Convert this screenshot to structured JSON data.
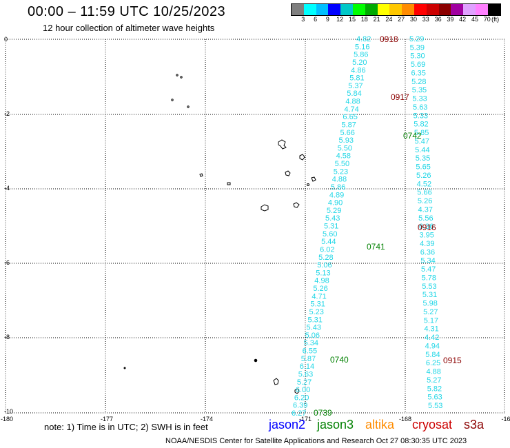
{
  "header": {
    "title": "00:00 – 11:59 UTC 10/25/2023",
    "subtitle": "12 hour collection of altimeter wave heights"
  },
  "color_scale": {
    "colors": [
      "#7f7f7f",
      "#00ffff",
      "#00bfff",
      "#0000ff",
      "#00c8c8",
      "#00ff00",
      "#00aa00",
      "#ffff00",
      "#ffc800",
      "#ff8c00",
      "#ff0000",
      "#cc0000",
      "#8b0000",
      "#a000a0",
      "#e0a0ff",
      "#ff80ff",
      "#000000"
    ],
    "labels": [
      "3",
      "6",
      "9",
      "12",
      "15",
      "18",
      "21",
      "24",
      "27",
      "30",
      "33",
      "36",
      "39",
      "42",
      "45",
      "70",
      "(ft)"
    ]
  },
  "axes": {
    "x_ticks": [
      "-180",
      "-177",
      "-174",
      "-171",
      "-168",
      "-16"
    ],
    "y_ticks": [
      "0",
      "-2",
      "-4",
      "-6",
      "-8",
      "-10"
    ]
  },
  "track_color": "#1fd6e6",
  "time_color_green": "#008000",
  "time_color_red": "#8b0000",
  "tracks": {
    "left_values": [
      "4.82",
      "5.16",
      "5.86",
      "5.20",
      "4.86",
      "5.81",
      "5.37",
      "5.84",
      "4.88",
      "4.74",
      "6.65",
      "5.87",
      "5.66",
      "5.93",
      "5.50",
      "4.58",
      "5.50",
      "5.23",
      "4.88",
      "5.86",
      "4.89",
      "4.90",
      "5.29",
      "5.43",
      "5.31",
      "5.60",
      "5.44",
      "6.02",
      "5.28",
      "5.06",
      "5.13",
      "4.98",
      "5.26",
      "4.71",
      "5.31",
      "5.23",
      "5.31",
      "5.43",
      "5.06",
      "5.34",
      "6.55",
      "5.87",
      "6.14",
      "5.63",
      "5.27",
      "6.00",
      "6.20",
      "6.39",
      "6.27"
    ],
    "right_values": [
      "5.29",
      "5.39",
      "5.30",
      "5.69",
      "6.35",
      "5.28",
      "5.35",
      "5.33",
      "5.63",
      "5.33",
      "5.82",
      "5.85",
      "5.47",
      "5.44",
      "5.35",
      "5.65",
      "5.26",
      "4.52",
      "5.66",
      "5.26",
      "4.37",
      "5.56",
      "6.36",
      "3.95",
      "4.39",
      "6.36",
      "5.34",
      "5.47",
      "5.78",
      "5.53",
      "5.31",
      "5.98",
      "5.27",
      "5.17",
      "4.31",
      "4.42",
      "4.94",
      "5.84",
      "6.25",
      "4.88",
      "5.27",
      "5.82",
      "5.63",
      "5.53"
    ]
  },
  "time_labels": [
    {
      "text": "0918",
      "color": "red"
    },
    {
      "text": "0917",
      "color": "red"
    },
    {
      "text": "0742",
      "color": "green"
    },
    {
      "text": "0916",
      "color": "red"
    },
    {
      "text": "0741",
      "color": "green"
    },
    {
      "text": "0740",
      "color": "green"
    },
    {
      "text": "0915",
      "color": "red"
    },
    {
      "text": "0739",
      "color": "green"
    }
  ],
  "footer": {
    "note": "note:  1) Time is in UTC;  2) SWH is in feet",
    "satellites": [
      {
        "name": "jason2",
        "color": "#0000ff"
      },
      {
        "name": "jason3",
        "color": "#008000"
      },
      {
        "name": "altika",
        "color": "#ff8c00"
      },
      {
        "name": "cryosat",
        "color": "#cc0000"
      },
      {
        "name": "s3a",
        "color": "#8b0000"
      }
    ],
    "credit": "NOAA/NESDIS Center for Satellite Applications and Research    Oct 27 08:30:35 UTC 2023"
  }
}
